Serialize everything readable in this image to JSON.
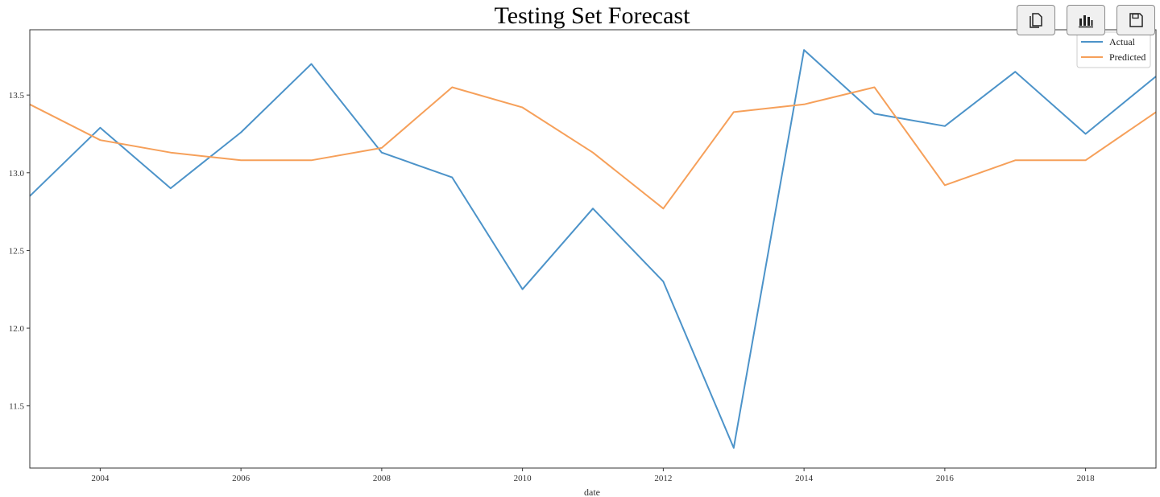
{
  "toolbar": {
    "buttons": [
      {
        "icon": "copy-icon"
      },
      {
        "icon": "bar-chart-icon"
      },
      {
        "icon": "save-icon"
      }
    ]
  },
  "chart_data": {
    "type": "line",
    "title": "Testing Set Forecast",
    "xlabel": "date",
    "ylabel": "",
    "x": [
      2003,
      2004,
      2005,
      2006,
      2007,
      2008,
      2009,
      2010,
      2011,
      2012,
      2013,
      2014,
      2015,
      2016,
      2017,
      2018,
      2019
    ],
    "xlim": [
      2003,
      2019
    ],
    "ylim": [
      11.1,
      13.92
    ],
    "x_ticks": [
      "2004",
      "2006",
      "2008",
      "2010",
      "2012",
      "2014",
      "2016",
      "2018"
    ],
    "y_ticks": [
      "11.5",
      "12.0",
      "12.5",
      "13.0",
      "13.5"
    ],
    "grid": false,
    "legend_position": "top-right",
    "series": [
      {
        "name": "Actual",
        "color": "#4c93c9",
        "values": [
          12.85,
          13.29,
          12.9,
          13.26,
          13.7,
          13.13,
          12.97,
          12.25,
          12.77,
          12.3,
          11.23,
          13.79,
          13.38,
          13.3,
          13.65,
          13.25,
          13.62
        ]
      },
      {
        "name": "Predicted",
        "color": "#f6a05a",
        "values": [
          13.44,
          13.21,
          13.13,
          13.08,
          13.08,
          13.16,
          13.55,
          13.42,
          13.13,
          12.77,
          13.39,
          13.44,
          13.55,
          12.92,
          13.08,
          13.08,
          13.39
        ]
      }
    ]
  }
}
